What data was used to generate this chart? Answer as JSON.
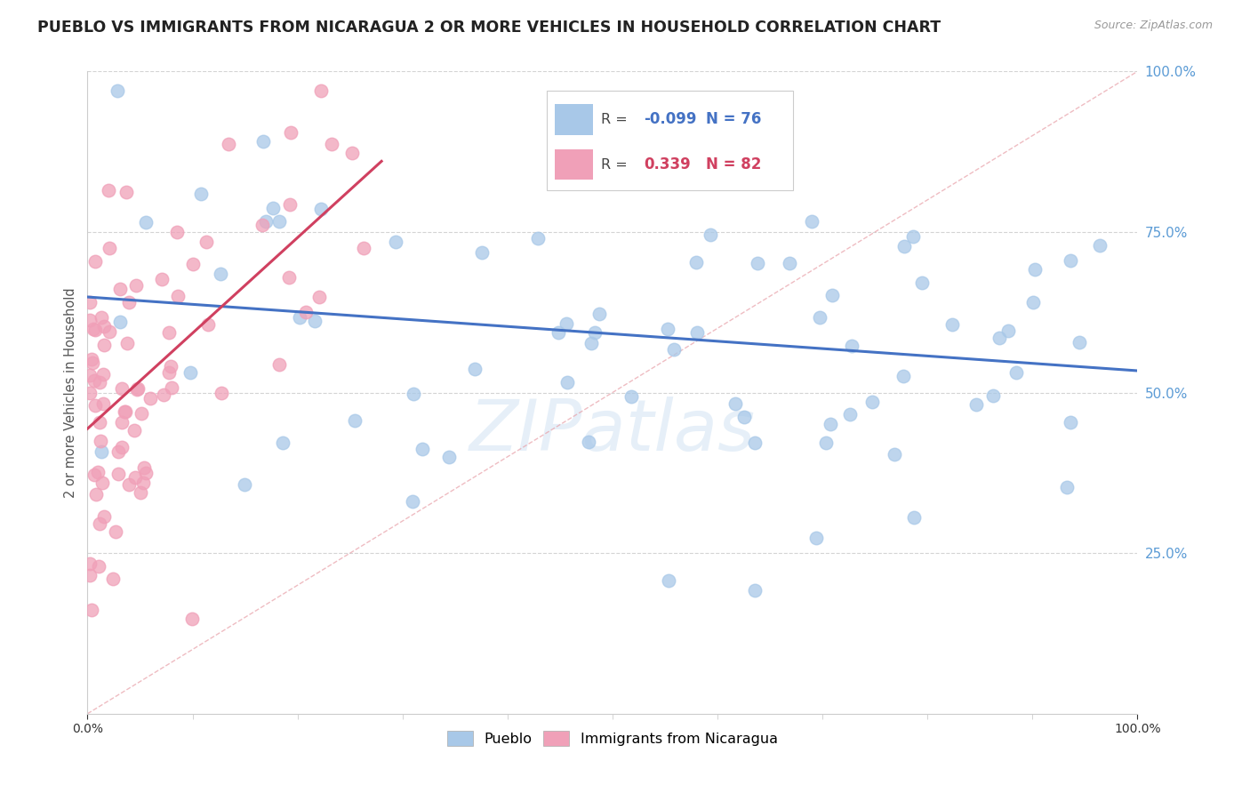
{
  "title": "PUEBLO VS IMMIGRANTS FROM NICARAGUA 2 OR MORE VEHICLES IN HOUSEHOLD CORRELATION CHART",
  "source_text": "Source: ZipAtlas.com",
  "ylabel": "2 or more Vehicles in Household",
  "watermark": "ZIPatlas",
  "legend_label1": "Pueblo",
  "legend_label2": "Immigrants from Nicaragua",
  "R1": -0.099,
  "N1": 76,
  "R2": 0.339,
  "N2": 82,
  "color_blue": "#a8c8e8",
  "color_pink": "#f0a0b8",
  "color_blue_line": "#4472c4",
  "color_pink_line": "#d04060",
  "color_ytick": "#5b9bd5",
  "xmin": 0.0,
  "xmax": 1.0,
  "ymin": 0.0,
  "ymax": 1.0
}
